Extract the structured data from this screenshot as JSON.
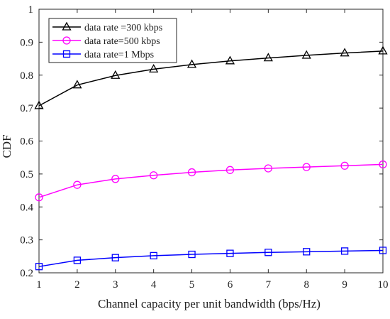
{
  "chart_data": {
    "type": "line",
    "xlabel": "Channel capacity per unit bandwidth (bps/Hz)",
    "ylabel": "CDF",
    "xlim": [
      1,
      10
    ],
    "ylim": [
      0.2,
      1
    ],
    "xticks": [
      1,
      2,
      3,
      4,
      5,
      6,
      7,
      8,
      9,
      10
    ],
    "yticks": [
      0.2,
      0.3,
      0.4,
      0.5,
      0.6,
      0.7,
      0.8,
      0.9,
      1
    ],
    "grid": false,
    "legend_position": "top-left",
    "x": [
      1,
      2,
      3,
      4,
      5,
      6,
      7,
      8,
      9,
      10
    ],
    "series": [
      {
        "name": "data rate =300 kbps",
        "marker": "triangle",
        "color": "#000000",
        "values": [
          0.707,
          0.77,
          0.799,
          0.818,
          0.832,
          0.843,
          0.852,
          0.86,
          0.867,
          0.873
        ]
      },
      {
        "name": "data rate=500 kbps",
        "marker": "circle",
        "color": "#ff00ff",
        "values": [
          0.429,
          0.467,
          0.485,
          0.496,
          0.505,
          0.512,
          0.517,
          0.521,
          0.525,
          0.529
        ]
      },
      {
        "name": "data rate=1 Mbps",
        "marker": "square",
        "color": "#0000ff",
        "values": [
          0.219,
          0.238,
          0.246,
          0.252,
          0.256,
          0.259,
          0.262,
          0.264,
          0.266,
          0.268
        ]
      }
    ]
  }
}
